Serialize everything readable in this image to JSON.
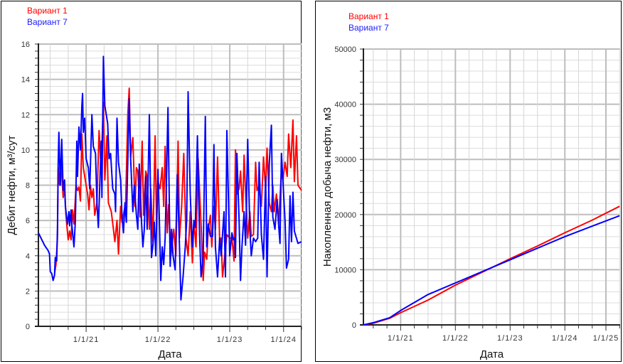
{
  "chart_data": [
    {
      "type": "line",
      "title": "",
      "xlabel": "Дата",
      "ylabel": "Дебит нефти, м³/сут",
      "ylim": [
        0,
        16
      ],
      "yticks": [
        0,
        2,
        4,
        6,
        8,
        10,
        12,
        14,
        16
      ],
      "y_minor_step": 0.4,
      "xlim": [
        2020.335,
        2024.0
      ],
      "x_minor_step": 0.25,
      "xticks": [
        {
          "value": 2021.0,
          "label": "1/1/21"
        },
        {
          "value": 2022.0,
          "label": "1/1/22"
        },
        {
          "value": 2023.0,
          "label": "1/1/23"
        },
        {
          "value": 2023.75,
          "label": "1/1/24"
        }
      ],
      "grid": true,
      "legend_placement": "top-left",
      "series": [
        {
          "name": "Вариант 1",
          "color": "#ff0000",
          "x": [
            2020.56,
            2020.58,
            2020.6,
            2020.61,
            2020.63,
            2020.65,
            2020.68,
            2020.7,
            2020.72,
            2020.75,
            2020.77,
            2020.79,
            2020.81,
            2020.83,
            2020.86,
            2020.88,
            2020.9,
            2020.92,
            2020.94,
            2020.96,
            2021.0,
            2021.02,
            2021.04,
            2021.06,
            2021.08,
            2021.1,
            2021.12,
            2021.15,
            2021.18,
            2021.2,
            2021.22,
            2021.24,
            2021.26,
            2021.29,
            2021.31,
            2021.35,
            2021.38,
            2021.4,
            2021.43,
            2021.45,
            2021.48,
            2021.5,
            2021.55,
            2021.58,
            2021.6,
            2021.62,
            2021.65,
            2021.68,
            2021.7,
            2021.72,
            2021.75,
            2021.78,
            2021.8,
            2021.83,
            2021.85,
            2021.88,
            2021.9,
            2021.93,
            2021.96,
            2021.98,
            2022.0,
            2022.03,
            2022.06,
            2022.08,
            2022.1,
            2022.13,
            2022.15,
            2022.18,
            2022.22,
            2022.25,
            2022.28,
            2022.3,
            2022.33,
            2022.36,
            2022.39,
            2022.42,
            2022.45,
            2022.48,
            2022.5,
            2022.53,
            2022.56,
            2022.6,
            2022.63,
            2022.65,
            2022.68,
            2022.7,
            2022.73,
            2022.75,
            2022.78,
            2022.8,
            2022.83,
            2022.86,
            2022.88,
            2022.9,
            2022.93,
            2022.96,
            2023.0,
            2023.03,
            2023.06,
            2023.08,
            2023.1,
            2023.13,
            2023.15,
            2023.18,
            2023.2,
            2023.22,
            2023.25,
            2023.28,
            2023.3,
            2023.33,
            2023.36,
            2023.38,
            2023.41,
            2023.44,
            2023.47,
            2023.5,
            2023.52,
            2023.55,
            2023.58,
            2023.6,
            2023.62,
            2023.65,
            2023.68,
            2023.72,
            2023.74,
            2023.77,
            2023.8,
            2023.82,
            2023.85,
            2023.88,
            2023.9,
            2023.93,
            2023.95,
            2024.0
          ],
          "y": [
            3.0,
            3.5,
            5.0,
            9.0,
            8.0,
            9.3,
            7.3,
            7.8,
            6.2,
            4.9,
            5.4,
            4.9,
            6.6,
            5.8,
            8.0,
            7.7,
            7.9,
            7.1,
            10.9,
            9.0,
            8.0,
            7.5,
            6.6,
            8.0,
            7.3,
            7.8,
            6.3,
            7.0,
            11.1,
            9.5,
            10.3,
            12.7,
            8.3,
            10.8,
            7.0,
            6.5,
            5.5,
            4.8,
            6.0,
            4.1,
            6.8,
            5.9,
            7.0,
            12.0,
            13.5,
            9.6,
            10.7,
            6.8,
            9.0,
            8.8,
            6.2,
            10.5,
            6.3,
            8.8,
            8.5,
            5.5,
            7.8,
            4.8,
            10.8,
            5.8,
            8.2,
            7.8,
            9.0,
            6.8,
            10.2,
            5.3,
            6.9,
            4.0,
            5.5,
            4.0,
            10.5,
            5.0,
            6.8,
            9.8,
            5.0,
            4.0,
            6.5,
            3.6,
            6.0,
            4.5,
            9.5,
            5.8,
            2.6,
            4.2,
            3.8,
            5.5,
            6.3,
            4.5,
            6.8,
            5.5,
            9.6,
            4.8,
            5.0,
            2.8,
            4.0,
            5.2,
            5.0,
            5.0,
            3.7,
            10.0,
            7.5,
            7.8,
            8.8,
            6.5,
            9.7,
            7.6,
            5.0,
            6.5,
            5.1,
            5.2,
            9.3,
            7.7,
            8.0,
            6.8,
            9.6,
            7.8,
            10.1,
            7.0,
            6.5,
            8.0,
            6.5,
            7.5,
            5.8,
            8.8,
            8.3,
            9.3,
            8.5,
            10.9,
            9.0,
            11.7,
            8.2,
            10.8,
            8.0,
            7.7
          ]
        },
        {
          "name": "Вариант 7",
          "color": "#0000ff",
          "x": [
            2020.335,
            2020.42,
            2020.47,
            2020.49,
            2020.5,
            2020.52,
            2020.54,
            2020.56,
            2020.57,
            2020.59,
            2020.6,
            2020.61,
            2020.62,
            2020.64,
            2020.66,
            2020.68,
            2020.7,
            2020.71,
            2020.74,
            2020.76,
            2020.77,
            2020.79,
            2020.8,
            2020.83,
            2020.85,
            2020.87,
            2020.88,
            2020.9,
            2020.92,
            2020.94,
            2020.95,
            2020.96,
            2020.98,
            2021.0,
            2021.03,
            2021.05,
            2021.08,
            2021.1,
            2021.13,
            2021.15,
            2021.17,
            2021.19,
            2021.21,
            2021.22,
            2021.24,
            2021.26,
            2021.3,
            2021.32,
            2021.34,
            2021.37,
            2021.4,
            2021.41,
            2021.43,
            2021.45,
            2021.48,
            2021.5,
            2021.52,
            2021.54,
            2021.56,
            2021.6,
            2021.62,
            2021.65,
            2021.67,
            2021.7,
            2021.72,
            2021.74,
            2021.77,
            2021.79,
            2021.81,
            2021.83,
            2021.85,
            2021.88,
            2021.91,
            2021.93,
            2021.95,
            2021.97,
            2022.0,
            2022.02,
            2022.04,
            2022.06,
            2022.08,
            2022.1,
            2022.12,
            2022.14,
            2022.17,
            2022.19,
            2022.21,
            2022.24,
            2022.27,
            2022.3,
            2022.32,
            2022.35,
            2022.38,
            2022.4,
            2022.42,
            2022.45,
            2022.48,
            2022.5,
            2022.52,
            2022.55,
            2022.58,
            2022.6,
            2022.63,
            2022.66,
            2022.68,
            2022.7,
            2022.73,
            2022.76,
            2022.78,
            2022.8,
            2022.83,
            2022.86,
            2022.88,
            2022.92,
            2022.94,
            2022.96,
            2023.0,
            2023.03,
            2023.05,
            2023.07,
            2023.08,
            2023.1,
            2023.13,
            2023.15,
            2023.17,
            2023.2,
            2023.22,
            2023.25,
            2023.28,
            2023.3,
            2023.33,
            2023.36,
            2023.39,
            2023.41,
            2023.44,
            2023.47,
            2023.5,
            2023.52,
            2023.55,
            2023.58,
            2023.6,
            2023.63,
            2023.66,
            2023.68,
            2023.7,
            2023.72,
            2023.77,
            2023.79,
            2023.82,
            2023.84,
            2023.86,
            2023.88,
            2023.9,
            2023.95,
            2024.0
          ],
          "y": [
            5.3,
            4.6,
            4.3,
            4.1,
            3.1,
            3.0,
            2.6,
            2.9,
            3.9,
            3.7,
            5.5,
            9.2,
            11.0,
            8.0,
            10.6,
            7.7,
            8.3,
            6.8,
            5.8,
            6.5,
            5.7,
            6.6,
            5.8,
            4.5,
            6.0,
            10.5,
            8.5,
            11.3,
            10.0,
            12.5,
            13.2,
            11.0,
            11.8,
            9.5,
            9.0,
            7.8,
            12.0,
            10.2,
            9.8,
            7.0,
            5.6,
            8.0,
            10.5,
            7.3,
            15.3,
            12.5,
            11.5,
            9.5,
            9.8,
            7.8,
            7.5,
            6.5,
            11.8,
            9.3,
            8.3,
            6.2,
            5.3,
            7.0,
            5.9,
            12.9,
            9.5,
            6.5,
            8.0,
            6.3,
            5.5,
            9.2,
            6.0,
            4.5,
            5.5,
            8.5,
            5.5,
            12.0,
            3.9,
            4.6,
            5.9,
            4.0,
            8.9,
            6.0,
            2.6,
            4.5,
            3.5,
            5.0,
            8.6,
            12.4,
            3.4,
            5.5,
            4.0,
            3.2,
            8.6,
            4.5,
            1.5,
            2.8,
            4.5,
            6.0,
            13.3,
            7.5,
            4.5,
            6.0,
            5.6,
            10.8,
            5.2,
            2.8,
            4.0,
            11.9,
            4.5,
            5.8,
            5.1,
            5.1,
            10.3,
            4.5,
            2.8,
            5.0,
            4.0,
            6.5,
            2.8,
            11.1,
            4.0,
            5.3,
            4.9,
            5.0,
            3.9,
            9.8,
            6.0,
            2.6,
            4.5,
            6.5,
            4.6,
            10.6,
            5.5,
            4.0,
            5.0,
            4.8,
            5.0,
            9.3,
            5.2,
            3.8,
            8.5,
            2.8,
            9.2,
            11.4,
            6.2,
            5.5,
            7.2,
            5.8,
            4.7,
            9.8,
            6.0,
            3.3,
            3.8,
            7.4,
            4.8,
            7.6,
            5.4,
            4.7,
            4.8
          ]
        }
      ]
    },
    {
      "type": "line",
      "title": "",
      "xlabel": "Дата",
      "ylabel": "Накопленная добыча нефти, м3",
      "ylim": [
        0,
        50000
      ],
      "yticks": [
        0,
        10000,
        20000,
        30000,
        40000,
        50000
      ],
      "y_minor_step": 2000,
      "xlim": [
        2020.32,
        2025.01
      ],
      "x_minor_step": 0.25,
      "xticks": [
        {
          "value": 2021.0,
          "label": "1/1/21"
        },
        {
          "value": 2022.0,
          "label": "1/1/22"
        },
        {
          "value": 2023.0,
          "label": "1/1/23"
        },
        {
          "value": 2024.0,
          "label": "1/1/24"
        },
        {
          "value": 2024.75,
          "label": "1/1/25"
        }
      ],
      "grid": true,
      "legend_placement": "top-left",
      "series": [
        {
          "name": "Вариант 1",
          "color": "#ff0000",
          "x": [
            2020.32,
            2020.5,
            2020.6,
            2020.8,
            2021.0,
            2021.5,
            2022.0,
            2022.5,
            2023.0,
            2023.5,
            2024.0,
            2024.5,
            2025.0
          ],
          "y": [
            0,
            300,
            600,
            1200,
            2200,
            4500,
            7200,
            9600,
            12000,
            14300,
            16700,
            19000,
            21500
          ]
        },
        {
          "name": "Вариант 7",
          "color": "#0000ff",
          "x": [
            2020.32,
            2020.5,
            2020.6,
            2020.8,
            2021.0,
            2021.5,
            2022.0,
            2022.5,
            2023.0,
            2023.5,
            2024.0,
            2024.5,
            2025.0
          ],
          "y": [
            0,
            400,
            700,
            1300,
            2600,
            5500,
            7600,
            9700,
            11800,
            13900,
            16000,
            17900,
            19800
          ]
        }
      ]
    }
  ]
}
